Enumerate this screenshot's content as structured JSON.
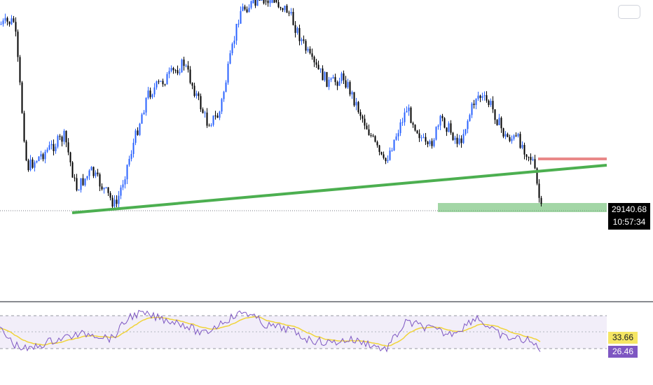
{
  "chart_data": {
    "type": "candlestick",
    "price_panel": {
      "current_price": "29140.68",
      "countdown": "10:57:34",
      "colors": {
        "up": "#2962ff",
        "down": "#000000",
        "trendline": "#4caf50",
        "zone": "#66bb6a",
        "resistance": "#e57373"
      }
    },
    "rsi_panel": {
      "rsi_value": "26.46",
      "signal_value": "33.66",
      "colors": {
        "rsi": "#7e57c2",
        "signal": "#f0d43a",
        "band": "#7e57c2"
      }
    }
  }
}
